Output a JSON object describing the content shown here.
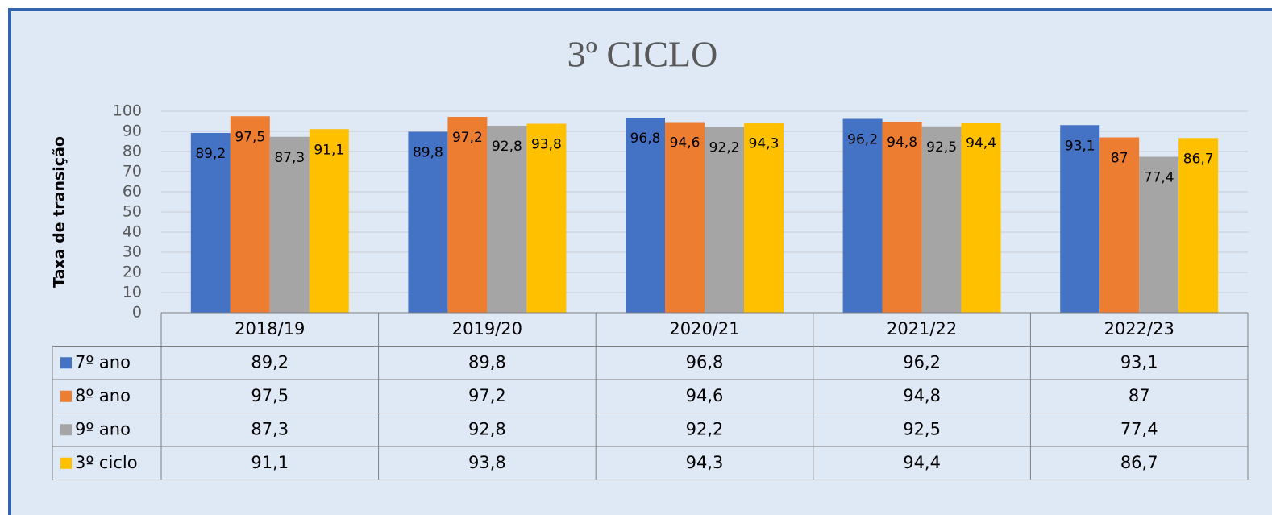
{
  "chart_data": {
    "type": "bar",
    "title": "3º CICLO",
    "y_label": "Taxa de transição",
    "categories": [
      "2018/19",
      "2019/20",
      "2020/21",
      "2021/22",
      "2022/23"
    ],
    "series": [
      {
        "name": "7º ano",
        "color": "#4472c4",
        "values": [
          89.2,
          89.8,
          96.8,
          96.2,
          93.1
        ],
        "value_labels": [
          "89,2",
          "89,8",
          "96,8",
          "96,2",
          "93,1"
        ]
      },
      {
        "name": "8º ano",
        "color": "#ed7d31",
        "values": [
          97.5,
          97.2,
          94.6,
          94.8,
          87
        ],
        "value_labels": [
          "97,5",
          "97,2",
          "94,6",
          "94,8",
          "87"
        ]
      },
      {
        "name": "9º ano",
        "color": "#a5a5a5",
        "values": [
          87.3,
          92.8,
          92.2,
          92.5,
          77.4
        ],
        "value_labels": [
          "87,3",
          "92,8",
          "92,2",
          "92,5",
          "77,4"
        ]
      },
      {
        "name": "3º ciclo",
        "color": "#ffc000",
        "values": [
          91.1,
          93.8,
          94.3,
          94.4,
          86.7
        ],
        "value_labels": [
          "91,1",
          "93,8",
          "94,3",
          "94,4",
          "86,7"
        ]
      }
    ],
    "ylim": [
      0,
      100
    ],
    "yticks": [
      0,
      10,
      20,
      30,
      40,
      50,
      60,
      70,
      80,
      90,
      100
    ],
    "grid": true,
    "data_table": true
  }
}
